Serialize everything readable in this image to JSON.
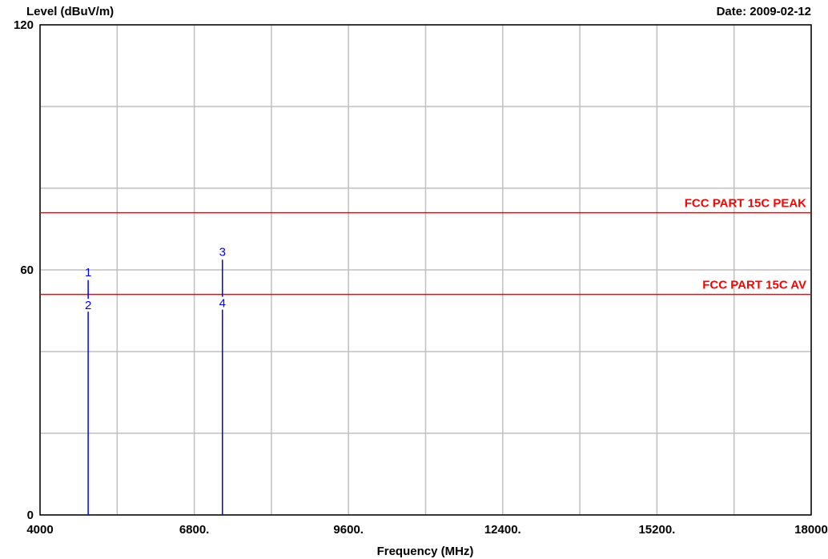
{
  "chart_data": {
    "type": "line",
    "ylabel": "Level (dBuV/m)",
    "xlabel": "Frequency (MHz)",
    "date_label": "Date: 2009-02-12",
    "xlim": [
      4000,
      18000
    ],
    "ylim": [
      0,
      120
    ],
    "x_ticks": [
      {
        "value": 4000,
        "label": "4000"
      },
      {
        "value": 6800,
        "label": "6800."
      },
      {
        "value": 9600,
        "label": "9600."
      },
      {
        "value": 12400,
        "label": "12400."
      },
      {
        "value": 15200,
        "label": "15200."
      },
      {
        "value": 18000,
        "label": "18000"
      }
    ],
    "x_grid": [
      4000,
      5400,
      6800,
      8200,
      9600,
      11000,
      12400,
      13800,
      15200,
      16600,
      18000
    ],
    "y_ticks": [
      {
        "value": 0,
        "label": "0"
      },
      {
        "value": 60,
        "label": "60"
      },
      {
        "value": 120,
        "label": "120"
      }
    ],
    "y_grid": [
      0,
      20,
      40,
      60,
      80,
      100,
      120
    ],
    "grid": true,
    "limit_lines": [
      {
        "name": "FCC PART 15C  PEAK",
        "value": 74,
        "color": "#ff0000"
      },
      {
        "name": "FCC PART 15C AV",
        "value": 54,
        "color": "#ff0000"
      }
    ],
    "emissions": [
      {
        "x": 4874,
        "peak": 57.5,
        "average": 53.5,
        "peak_label": "1",
        "avg_label": "2",
        "color": "#0000ff"
      },
      {
        "x": 7311,
        "peak": 62.5,
        "average": 54.0,
        "peak_label": "3",
        "avg_label": "4",
        "color": "#0000ff"
      }
    ]
  }
}
